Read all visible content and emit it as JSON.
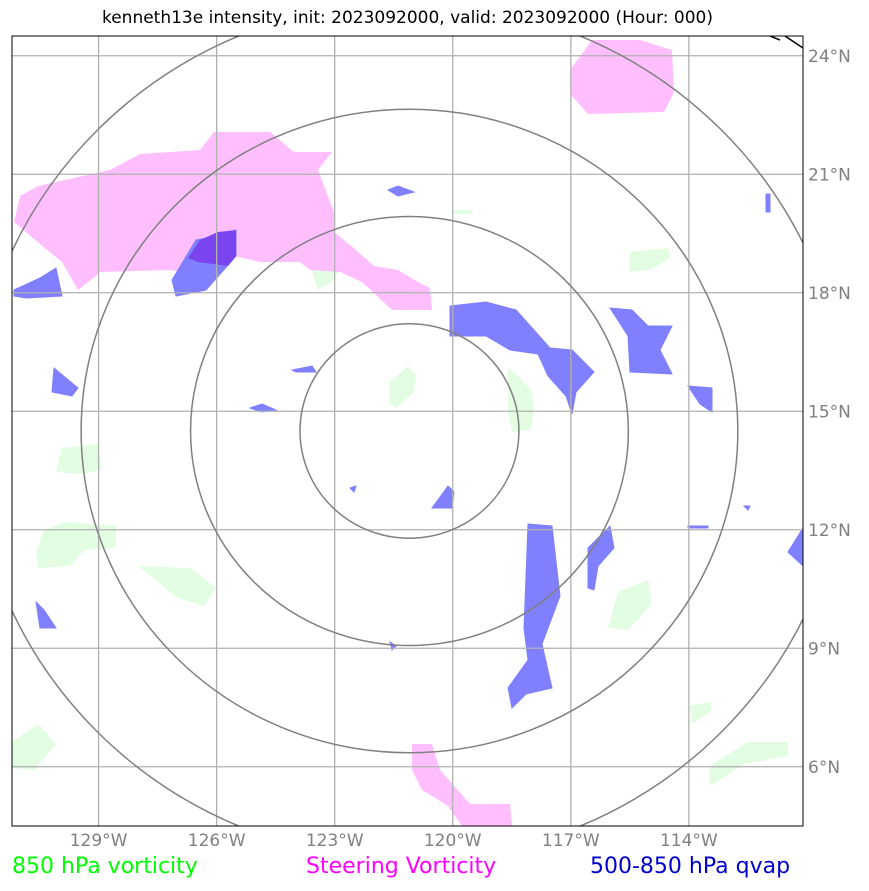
{
  "title": "kenneth13e intensity, init: 2023092000, valid: 2023092000 (Hour: 000)",
  "axes": {
    "lon_ticks": [
      {
        "value": -129,
        "label": "129°W"
      },
      {
        "value": -126,
        "label": "126°W"
      },
      {
        "value": -123,
        "label": "123°W"
      },
      {
        "value": -120,
        "label": "120°W"
      },
      {
        "value": -117,
        "label": "117°W"
      },
      {
        "value": -114,
        "label": "114°W"
      }
    ],
    "lat_ticks": [
      {
        "value": 24,
        "label": "24°N"
      },
      {
        "value": 21,
        "label": "21°N"
      },
      {
        "value": 18,
        "label": "18°N"
      },
      {
        "value": 15,
        "label": "15°N"
      },
      {
        "value": 12,
        "label": "12°N"
      },
      {
        "value": 9,
        "label": "9°N"
      },
      {
        "value": 6,
        "label": "6°N"
      }
    ],
    "lon_range": [
      -131.2,
      -111.1
    ],
    "lat_range": [
      4.5,
      24.5
    ]
  },
  "range_rings": {
    "center": {
      "lon": -121.1,
      "lat": 14.5
    },
    "count": 4
  },
  "legend": [
    {
      "label": "850 hPa vorticity",
      "color": "#00ff00"
    },
    {
      "label": "Steering Vorticity",
      "color": "#ff00ff"
    },
    {
      "label": "500-850 hPa qvap",
      "color": "#0000cc"
    }
  ],
  "colors": {
    "vorticity_fill": "#e2fde2",
    "steering_fill": "#ffbfff",
    "qvap_fill": "#8080ff",
    "overlap_fill": "#7a44ee",
    "grid": "#b0b0b0",
    "ring": "#808080"
  }
}
